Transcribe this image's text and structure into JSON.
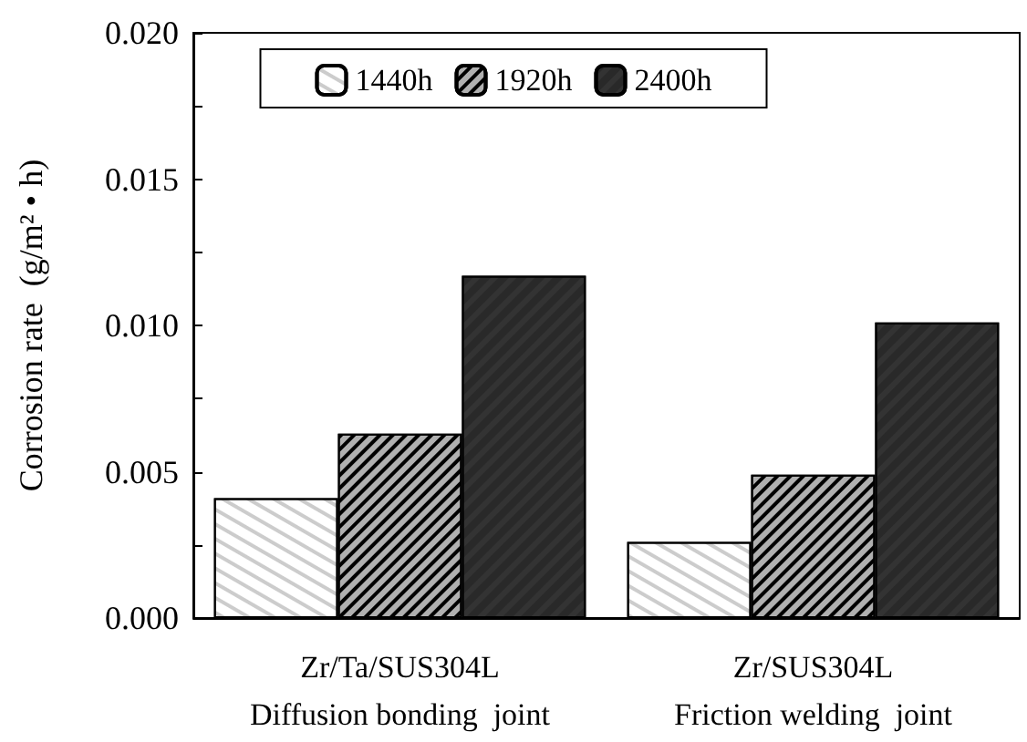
{
  "chart_data": {
    "type": "bar",
    "ylabel": "Corrosion rate  (g/m² • h)",
    "categories": [
      "Zr/Ta/SUS304L\nDiffusion bonding  joint",
      "Zr/SUS304L\nFriction welding  joint"
    ],
    "series": [
      {
        "name": "1440h",
        "color": "#ffffff",
        "values": [
          0.0041,
          0.0026
        ]
      },
      {
        "name": "1920h",
        "color": "#b0b0b0",
        "values": [
          0.0063,
          0.0049
        ]
      },
      {
        "name": "2400h",
        "color": "#333333",
        "values": [
          0.0117,
          0.0101
        ]
      }
    ],
    "ylim": [
      0,
      0.02
    ],
    "yticks": [
      "0.000",
      {
        "value": 0.0025,
        "label": null
      },
      {
        "value": 0.005,
        "label": "0.005"
      },
      {
        "value": 0.0075,
        "label": null
      },
      {
        "value": 0.01,
        "label": "0.010"
      },
      {
        "value": 0.0125,
        "label": null
      },
      {
        "value": 0.015,
        "label": "0.015"
      },
      {
        "value": 0.0175,
        "label": null
      },
      {
        "value": 0.02,
        "label": "0.020"
      }
    ],
    "grid": false,
    "legend": "top"
  }
}
